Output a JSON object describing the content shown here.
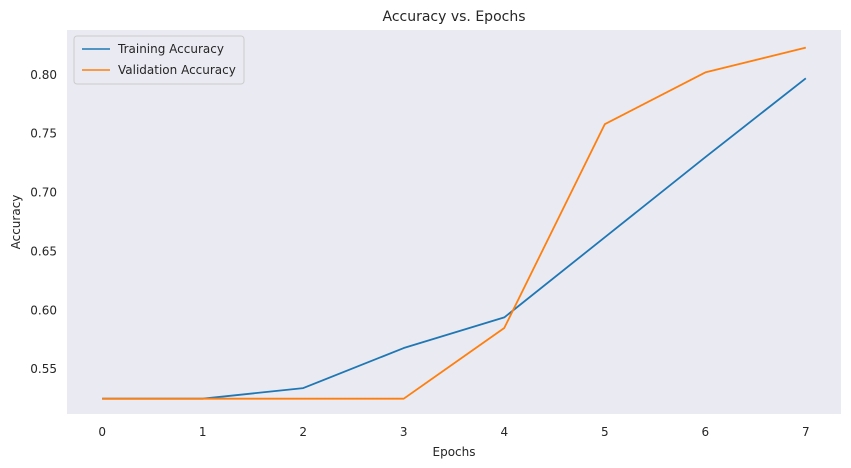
{
  "chart_data": {
    "type": "line",
    "title": "Accuracy vs. Epochs",
    "xlabel": "Epochs",
    "ylabel": "Accuracy",
    "x": [
      0,
      1,
      2,
      3,
      4,
      5,
      6,
      7
    ],
    "xlim": [
      -0.35,
      7.35
    ],
    "ylim": [
      0.512,
      0.838
    ],
    "xticks": [
      0,
      1,
      2,
      3,
      4,
      5,
      6,
      7
    ],
    "yticks": [
      0.55,
      0.6,
      0.65,
      0.7,
      0.75,
      0.8
    ],
    "ytick_labels": [
      "0.55",
      "0.60",
      "0.65",
      "0.70",
      "0.75",
      "0.80"
    ],
    "grid": false,
    "legend_position": "top-left",
    "series": [
      {
        "name": "Training Accuracy",
        "color": "#1f77b4",
        "values": [
          0.525,
          0.525,
          0.534,
          0.568,
          0.594,
          0.662,
          0.73,
          0.797
        ]
      },
      {
        "name": "Validation Accuracy",
        "color": "#ff7f0e",
        "values": [
          0.525,
          0.525,
          0.525,
          0.525,
          0.585,
          0.758,
          0.802,
          0.823
        ]
      }
    ]
  }
}
